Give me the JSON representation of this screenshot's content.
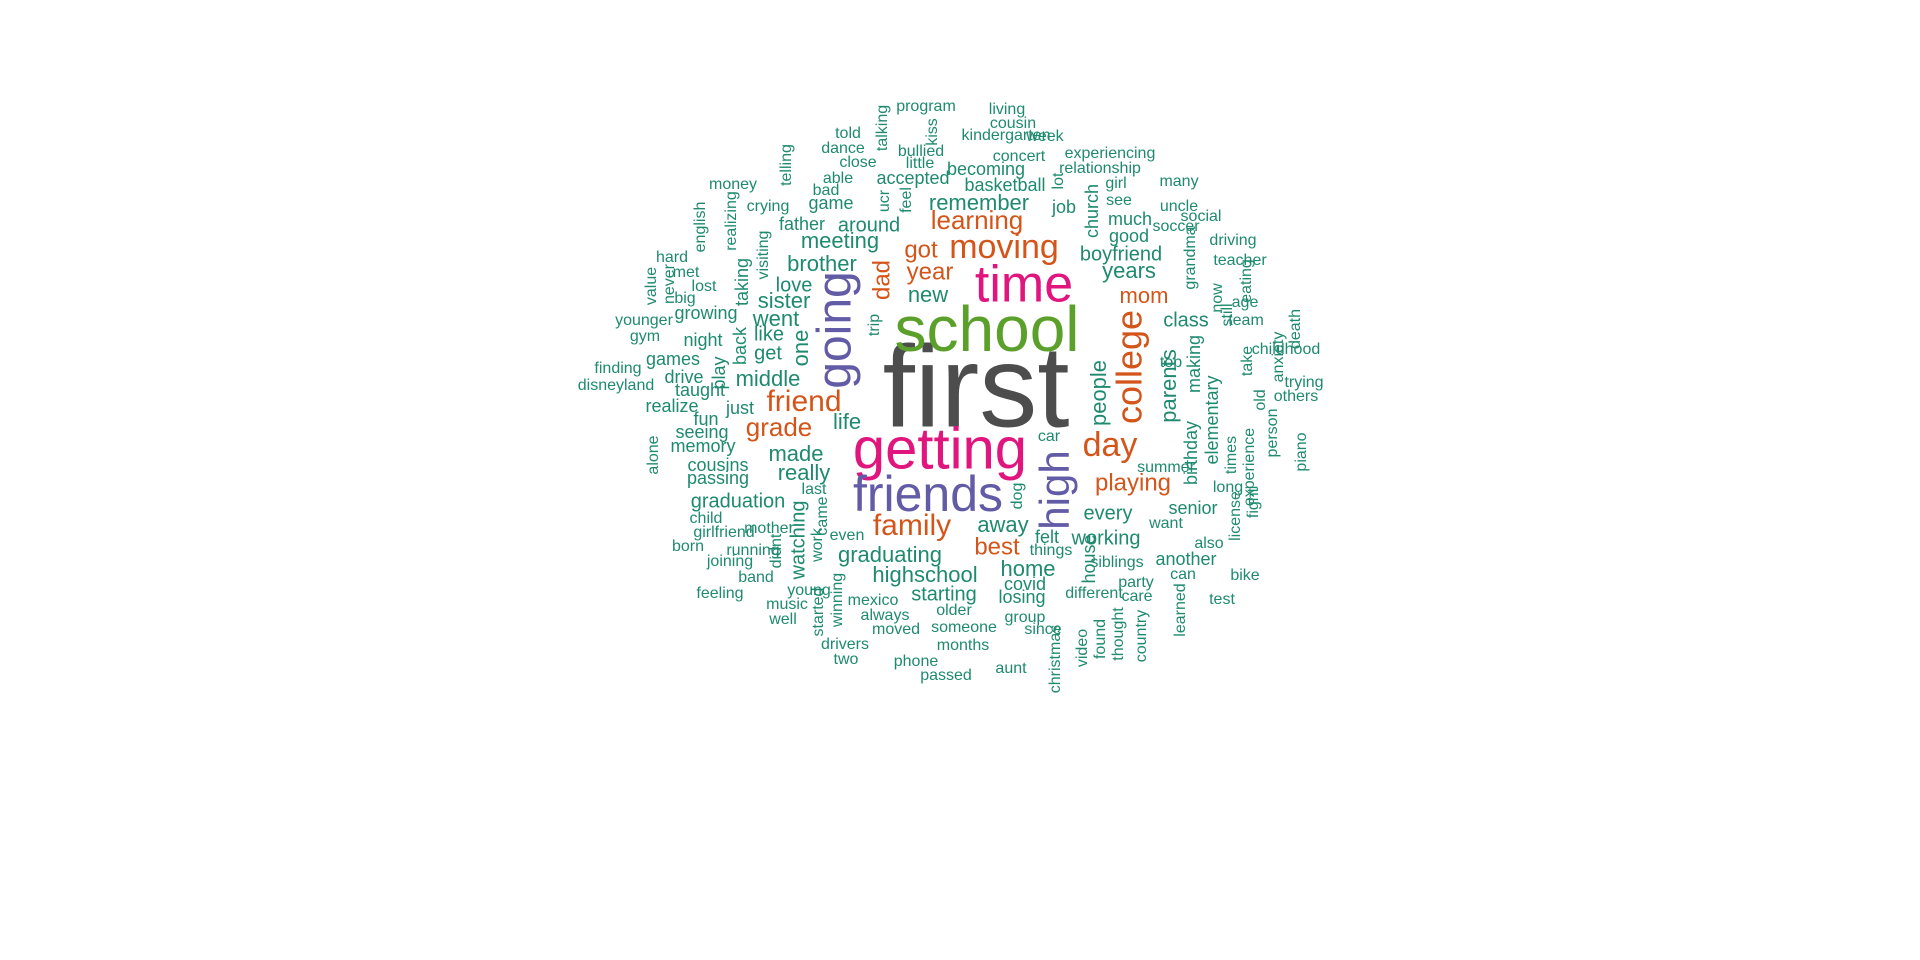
{
  "colors": {
    "primary": "#4D4D4D",
    "secondary": "#5BA02A",
    "accent": "#E0157E",
    "purple": "#625BA6",
    "orange": "#D4551A",
    "teal": "#1F8A70"
  },
  "words": [
    {
      "text": "first",
      "color": "primary"
    },
    {
      "text": "school",
      "color": "secondary"
    },
    {
      "text": "time",
      "color": "accent"
    },
    {
      "text": "getting",
      "color": "accent"
    },
    {
      "text": "friends",
      "color": "purple"
    },
    {
      "text": "going",
      "color": "purple"
    },
    {
      "text": "high",
      "color": "purple"
    },
    {
      "text": "moving",
      "color": "orange"
    },
    {
      "text": "college",
      "color": "orange"
    },
    {
      "text": "day",
      "color": "orange"
    },
    {
      "text": "friend",
      "color": "orange"
    },
    {
      "text": "family",
      "color": "orange"
    },
    {
      "text": "learning",
      "color": "orange"
    },
    {
      "text": "got",
      "color": "orange"
    },
    {
      "text": "year",
      "color": "orange"
    },
    {
      "text": "dad",
      "color": "orange"
    },
    {
      "text": "mom",
      "color": "orange"
    },
    {
      "text": "grade",
      "color": "orange"
    },
    {
      "text": "playing",
      "color": "orange"
    },
    {
      "text": "best",
      "color": "orange"
    },
    {
      "text": "remember",
      "color": "teal"
    },
    {
      "text": "meeting",
      "color": "teal"
    },
    {
      "text": "brother",
      "color": "teal"
    },
    {
      "text": "years",
      "color": "teal"
    },
    {
      "text": "new",
      "color": "teal"
    },
    {
      "text": "parents",
      "color": "teal"
    },
    {
      "text": "people",
      "color": "teal"
    },
    {
      "text": "made",
      "color": "teal"
    },
    {
      "text": "middle",
      "color": "teal"
    },
    {
      "text": "highschool",
      "color": "teal"
    },
    {
      "text": "graduating",
      "color": "teal"
    },
    {
      "text": "one",
      "color": "teal"
    },
    {
      "text": "really",
      "color": "teal"
    },
    {
      "text": "life",
      "color": "teal"
    },
    {
      "text": "sister",
      "color": "teal"
    },
    {
      "text": "went",
      "color": "teal"
    },
    {
      "text": "class",
      "color": "teal"
    },
    {
      "text": "home",
      "color": "teal"
    },
    {
      "text": "boyfriend",
      "color": "teal"
    },
    {
      "text": "away",
      "color": "teal"
    },
    {
      "text": "every",
      "color": "teal"
    },
    {
      "text": "working",
      "color": "teal"
    },
    {
      "text": "around",
      "color": "teal"
    },
    {
      "text": "graduation",
      "color": "teal"
    },
    {
      "text": "starting",
      "color": "teal"
    },
    {
      "text": "love",
      "color": "teal"
    },
    {
      "text": "like",
      "color": "teal"
    },
    {
      "text": "get",
      "color": "teal"
    },
    {
      "text": "taught",
      "color": "teal"
    },
    {
      "text": "making",
      "color": "teal"
    },
    {
      "text": "elementary",
      "color": "teal"
    },
    {
      "text": "birthday",
      "color": "teal"
    },
    {
      "text": "cousins",
      "color": "teal"
    },
    {
      "text": "seeing",
      "color": "teal"
    },
    {
      "text": "watching",
      "color": "teal"
    },
    {
      "text": "basketball",
      "color": "teal"
    },
    {
      "text": "house",
      "color": "teal"
    },
    {
      "text": "losing",
      "color": "teal"
    },
    {
      "text": "covid",
      "color": "teal"
    },
    {
      "text": "felt",
      "color": "teal"
    },
    {
      "text": "senior",
      "color": "teal"
    },
    {
      "text": "another",
      "color": "teal"
    },
    {
      "text": "good",
      "color": "teal"
    },
    {
      "text": "much",
      "color": "teal"
    },
    {
      "text": "church",
      "color": "teal"
    },
    {
      "text": "job",
      "color": "teal"
    },
    {
      "text": "game",
      "color": "teal"
    },
    {
      "text": "father",
      "color": "teal"
    },
    {
      "text": "accepted",
      "color": "teal"
    },
    {
      "text": "becoming",
      "color": "teal"
    },
    {
      "text": "concert",
      "color": "teal"
    },
    {
      "text": "passing",
      "color": "teal"
    },
    {
      "text": "memory",
      "color": "teal"
    },
    {
      "text": "night",
      "color": "teal"
    },
    {
      "text": "back",
      "color": "teal"
    },
    {
      "text": "just",
      "color": "teal"
    },
    {
      "text": "fun",
      "color": "teal"
    },
    {
      "text": "growing",
      "color": "teal"
    },
    {
      "text": "games",
      "color": "teal"
    },
    {
      "text": "drive",
      "color": "teal"
    },
    {
      "text": "realize",
      "color": "teal"
    },
    {
      "text": "play",
      "color": "teal"
    },
    {
      "text": "taking",
      "color": "teal"
    },
    {
      "text": "visiting",
      "color": "teal"
    },
    {
      "text": "crying",
      "color": "teal"
    },
    {
      "text": "realizing",
      "color": "teal"
    },
    {
      "text": "english",
      "color": "teal"
    },
    {
      "text": "money",
      "color": "teal"
    },
    {
      "text": "telling",
      "color": "teal"
    },
    {
      "text": "bad",
      "color": "teal"
    },
    {
      "text": "able",
      "color": "teal"
    },
    {
      "text": "close",
      "color": "teal"
    },
    {
      "text": "dance",
      "color": "teal"
    },
    {
      "text": "told",
      "color": "teal"
    },
    {
      "text": "talking",
      "color": "teal"
    },
    {
      "text": "program",
      "color": "teal"
    },
    {
      "text": "kiss",
      "color": "teal"
    },
    {
      "text": "bullied",
      "color": "teal"
    },
    {
      "text": "little",
      "color": "teal"
    },
    {
      "text": "ucr",
      "color": "teal"
    },
    {
      "text": "feel",
      "color": "teal"
    },
    {
      "text": "living",
      "color": "teal"
    },
    {
      "text": "cousin",
      "color": "teal"
    },
    {
      "text": "kindergarten",
      "color": "teal"
    },
    {
      "text": "week",
      "color": "teal"
    },
    {
      "text": "experiencing",
      "color": "teal"
    },
    {
      "text": "relationship",
      "color": "teal"
    },
    {
      "text": "lot",
      "color": "teal"
    },
    {
      "text": "girl",
      "color": "teal"
    },
    {
      "text": "many",
      "color": "teal"
    },
    {
      "text": "see",
      "color": "teal"
    },
    {
      "text": "uncle",
      "color": "teal"
    },
    {
      "text": "social",
      "color": "teal"
    },
    {
      "text": "soccer",
      "color": "teal"
    },
    {
      "text": "driving",
      "color": "teal"
    },
    {
      "text": "grandma",
      "color": "teal"
    },
    {
      "text": "teacher",
      "color": "teal"
    },
    {
      "text": "now",
      "color": "teal"
    },
    {
      "text": "eating",
      "color": "teal"
    },
    {
      "text": "age",
      "color": "teal"
    },
    {
      "text": "still",
      "color": "teal"
    },
    {
      "text": "team",
      "color": "teal"
    },
    {
      "text": "death",
      "color": "teal"
    },
    {
      "text": "take",
      "color": "teal"
    },
    {
      "text": "childhood",
      "color": "teal"
    },
    {
      "text": "anxiety",
      "color": "teal"
    },
    {
      "text": "trying",
      "color": "teal"
    },
    {
      "text": "others",
      "color": "teal"
    },
    {
      "text": "top",
      "color": "teal"
    },
    {
      "text": "old",
      "color": "teal"
    },
    {
      "text": "person",
      "color": "teal"
    },
    {
      "text": "piano",
      "color": "teal"
    },
    {
      "text": "experience",
      "color": "teal"
    },
    {
      "text": "times",
      "color": "teal"
    },
    {
      "text": "summer",
      "color": "teal"
    },
    {
      "text": "long",
      "color": "teal"
    },
    {
      "text": "fight",
      "color": "teal"
    },
    {
      "text": "license",
      "color": "teal"
    },
    {
      "text": "want",
      "color": "teal"
    },
    {
      "text": "also",
      "color": "teal"
    },
    {
      "text": "can",
      "color": "teal"
    },
    {
      "text": "bike",
      "color": "teal"
    },
    {
      "text": "siblings",
      "color": "teal"
    },
    {
      "text": "party",
      "color": "teal"
    },
    {
      "text": "care",
      "color": "teal"
    },
    {
      "text": "test",
      "color": "teal"
    },
    {
      "text": "learned",
      "color": "teal"
    },
    {
      "text": "country",
      "color": "teal"
    },
    {
      "text": "thought",
      "color": "teal"
    },
    {
      "text": "found",
      "color": "teal"
    },
    {
      "text": "video",
      "color": "teal"
    },
    {
      "text": "christmas",
      "color": "teal"
    },
    {
      "text": "aunt",
      "color": "teal"
    },
    {
      "text": "passed",
      "color": "teal"
    },
    {
      "text": "phone",
      "color": "teal"
    },
    {
      "text": "months",
      "color": "teal"
    },
    {
      "text": "someone",
      "color": "teal"
    },
    {
      "text": "since",
      "color": "teal"
    },
    {
      "text": "group",
      "color": "teal"
    },
    {
      "text": "different",
      "color": "teal"
    },
    {
      "text": "things",
      "color": "teal"
    },
    {
      "text": "older",
      "color": "teal"
    },
    {
      "text": "moved",
      "color": "teal"
    },
    {
      "text": "always",
      "color": "teal"
    },
    {
      "text": "mexico",
      "color": "teal"
    },
    {
      "text": "two",
      "color": "teal"
    },
    {
      "text": "drivers",
      "color": "teal"
    },
    {
      "text": "winning",
      "color": "teal"
    },
    {
      "text": "started",
      "color": "teal"
    },
    {
      "text": "well",
      "color": "teal"
    },
    {
      "text": "music",
      "color": "teal"
    },
    {
      "text": "young",
      "color": "teal"
    },
    {
      "text": "feeling",
      "color": "teal"
    },
    {
      "text": "band",
      "color": "teal"
    },
    {
      "text": "joining",
      "color": "teal"
    },
    {
      "text": "running",
      "color": "teal"
    },
    {
      "text": "born",
      "color": "teal"
    },
    {
      "text": "girlfriend",
      "color": "teal"
    },
    {
      "text": "child",
      "color": "teal"
    },
    {
      "text": "mother",
      "color": "teal"
    },
    {
      "text": "didnt",
      "color": "teal"
    },
    {
      "text": "work",
      "color": "teal"
    },
    {
      "text": "even",
      "color": "teal"
    },
    {
      "text": "last",
      "color": "teal"
    },
    {
      "text": "came",
      "color": "teal"
    },
    {
      "text": "dog",
      "color": "teal"
    },
    {
      "text": "car",
      "color": "teal"
    },
    {
      "text": "trip",
      "color": "teal"
    },
    {
      "text": "alone",
      "color": "teal"
    },
    {
      "text": "disneyland",
      "color": "teal"
    },
    {
      "text": "finding",
      "color": "teal"
    },
    {
      "text": "gym",
      "color": "teal"
    },
    {
      "text": "younger",
      "color": "teal"
    },
    {
      "text": "value",
      "color": "teal"
    },
    {
      "text": "never",
      "color": "teal"
    },
    {
      "text": "big",
      "color": "teal"
    },
    {
      "text": "lost",
      "color": "teal"
    },
    {
      "text": "met",
      "color": "teal"
    },
    {
      "text": "hard",
      "color": "teal"
    },
    {
      "text": "giving",
      "color": "teal"
    }
  ]
}
